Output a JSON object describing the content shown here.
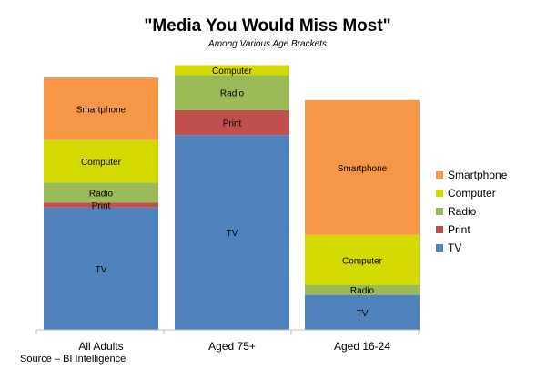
{
  "chart_data": {
    "type": "bar",
    "stacked": true,
    "title": "\"Media You Would Miss Most\"",
    "subtitle": "Among Various Age Brackets",
    "categories": [
      "All Adults",
      "Aged 75+",
      "Aged 16-24"
    ],
    "series": [
      {
        "name": "TV",
        "color": "#4f81bd",
        "values": [
          49,
          78,
          14
        ]
      },
      {
        "name": "Print",
        "color": "#c0504d",
        "values": [
          2,
          10,
          0
        ]
      },
      {
        "name": "Radio",
        "color": "#9bbb59",
        "values": [
          8,
          14,
          4
        ]
      },
      {
        "name": "Computer",
        "color": "#d4d900",
        "values": [
          17,
          4,
          20
        ]
      },
      {
        "name": "Smartphone",
        "color": "#f79646",
        "values": [
          25,
          0,
          54
        ]
      }
    ],
    "ylim": [
      0,
      108
    ],
    "grid": false,
    "legend": "right"
  },
  "source": "Source – BI Intelligence"
}
